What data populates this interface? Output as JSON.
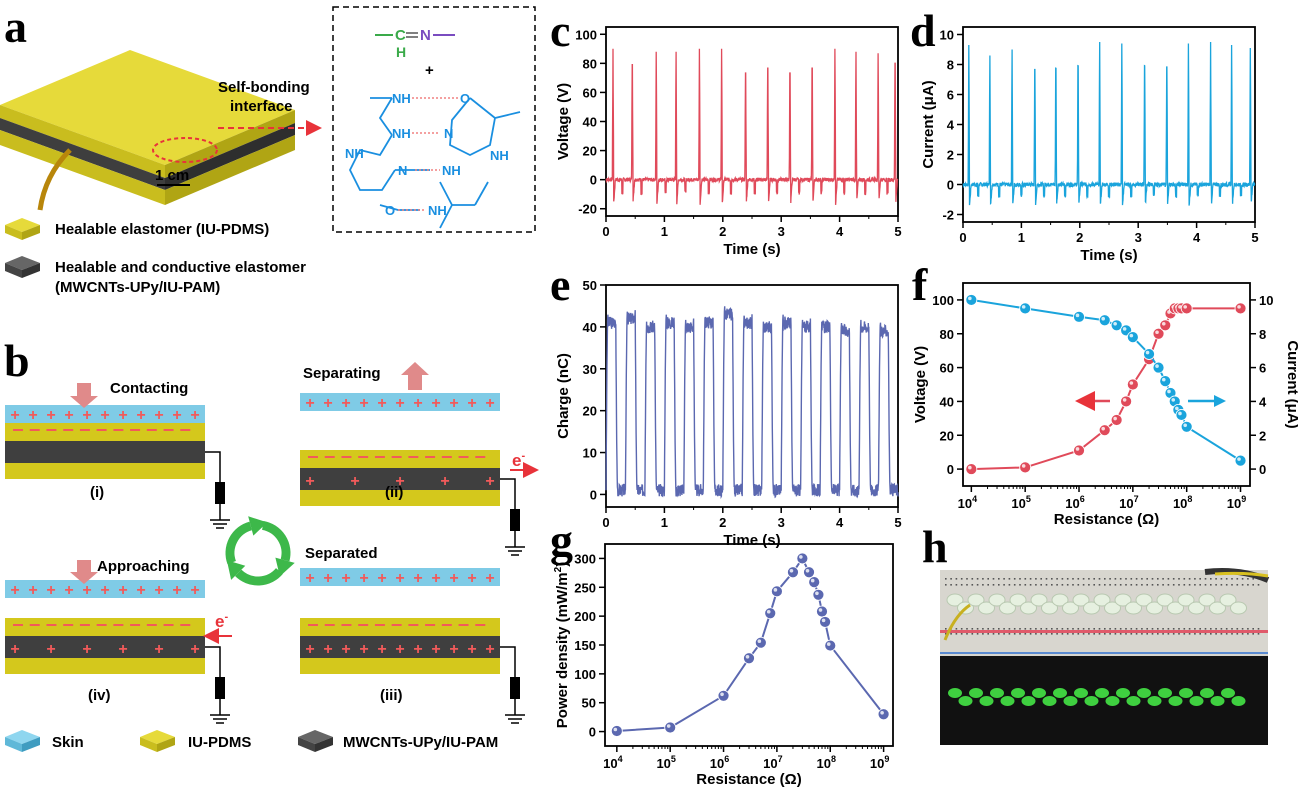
{
  "panel_labels": [
    "a",
    "b",
    "c",
    "d",
    "e",
    "f",
    "g",
    "h"
  ],
  "panel_a": {
    "callout": [
      "Self-bonding",
      "interface"
    ],
    "scale_bar": "1 cm",
    "chem": {
      "top_c": "C",
      "top_h": "H",
      "top_n": "N",
      "plus": "+",
      "nh": "NH",
      "n": "N",
      "o": "O"
    },
    "legend": [
      {
        "label": "Healable elastomer (IU-PDMS)",
        "color": "#d4c81c"
      },
      {
        "label": "Healable and conductive elastomer",
        "label2": "(MWCNTs-UPy/IU-PAM)",
        "color": "#4a4a4a"
      }
    ]
  },
  "panel_b": {
    "states": {
      "i": "Contacting",
      "ii": "Separating",
      "iii": "Separated",
      "iv": "Approaching"
    },
    "roman": {
      "i": "(i)",
      "ii": "(ii)",
      "iii": "(iii)",
      "iv": "(iv)"
    },
    "electron": "e",
    "electron_sup": "-",
    "plus": "+",
    "legend": [
      {
        "label": "Skin",
        "color": "#6cc6e6"
      },
      {
        "label": "IU-PDMS",
        "color": "#d4c81c"
      },
      {
        "label": "MWCNTs-UPy/IU-PAM",
        "color": "#4a4a4a"
      }
    ],
    "colors": {
      "skin": "#7fcbe6",
      "pdms": "#d4c81c",
      "conductive": "#3f3f3f",
      "charge": "#f25a5a",
      "arrow": "#e08a8a",
      "cycle": "#3db84a"
    }
  },
  "chart_data": [
    {
      "id": "c",
      "type": "line",
      "xlabel": "Time (s)",
      "ylabel": "Voltage (V)",
      "xlim": [
        0,
        5
      ],
      "ylim": [
        -25,
        105
      ],
      "xticks": [
        0,
        1,
        2,
        3,
        4,
        5
      ],
      "yticks": [
        -20,
        0,
        20,
        40,
        60,
        80,
        100
      ],
      "color": "#e04a5a",
      "peak_times": [
        0.12,
        0.45,
        0.86,
        1.2,
        1.6,
        1.98,
        2.39,
        2.77,
        3.15,
        3.53,
        3.92,
        4.28,
        4.66,
        4.95
      ],
      "peak_values": [
        90,
        95,
        88,
        88,
        90,
        90,
        88,
        92,
        88,
        92,
        90,
        88,
        87,
        96
      ],
      "trough_value": -18,
      "baseline": 0
    },
    {
      "id": "d",
      "type": "line",
      "xlabel": "Time (s)",
      "ylabel": "Current (μA)",
      "xlim": [
        0,
        5
      ],
      "ylim": [
        -2.5,
        10.5
      ],
      "xticks": [
        0,
        1,
        2,
        3,
        4,
        5
      ],
      "yticks": [
        -2,
        0,
        2,
        4,
        6,
        8,
        10
      ],
      "color": "#1aa4dc",
      "peak_times": [
        0.1,
        0.46,
        0.84,
        1.23,
        1.59,
        1.97,
        2.34,
        2.72,
        3.11,
        3.49,
        3.86,
        4.24,
        4.6,
        4.92
      ],
      "peak_values": [
        9.3,
        8.6,
        9.0,
        9.2,
        9.3,
        9.5,
        9.5,
        9.4,
        9.5,
        9.4,
        9.4,
        9.5,
        9.3,
        9.1
      ],
      "trough_value": -1.5,
      "baseline": 0
    },
    {
      "id": "e",
      "type": "line",
      "xlabel": "Time (s)",
      "ylabel": "Charge (nC)",
      "xlim": [
        0,
        5
      ],
      "ylim": [
        -3,
        50
      ],
      "xticks": [
        0,
        1,
        2,
        3,
        4,
        5
      ],
      "yticks": [
        0,
        10,
        20,
        30,
        40,
        50
      ],
      "color": "#5b68b0",
      "cycle_high_values": [
        43,
        44,
        42,
        43,
        42,
        43,
        45,
        43,
        42,
        43,
        42,
        42,
        41,
        42,
        41
      ],
      "low_value": 1
    },
    {
      "id": "f",
      "type": "line",
      "xlabel": "Resistance (Ω)",
      "ylabel": "Voltage (V)",
      "ylabel_right": "Current (μA)",
      "xscale": "log",
      "xlim": [
        7000,
        1500000000
      ],
      "ylim": [
        -10,
        110
      ],
      "ylim_right": [
        -1,
        11
      ],
      "xticks": [
        10000,
        100000,
        1000000,
        10000000,
        100000000,
        1000000000
      ],
      "xtick_labels": [
        "10",
        "10",
        "10",
        "10",
        "10",
        "10"
      ],
      "xtick_exps": [
        "4",
        "5",
        "6",
        "7",
        "8",
        "9"
      ],
      "yticks": [
        0,
        20,
        40,
        60,
        80,
        100
      ],
      "yticks_right": [
        0,
        2,
        4,
        6,
        8,
        10
      ],
      "x": [
        10000,
        100000,
        1000000,
        3000000,
        5000000,
        7500000,
        10000000,
        20000000,
        30000000,
        40000000,
        50000000,
        60000000,
        70000000,
        80000000,
        100000000,
        1000000000
      ],
      "series": [
        {
          "axis": "left",
          "color": "#e04a5a",
          "values": [
            0,
            1,
            11,
            23,
            29,
            40,
            50,
            65,
            80,
            85,
            92,
            95,
            95,
            95,
            95,
            95
          ]
        },
        {
          "axis": "right",
          "color": "#1aa4dc",
          "values": [
            10,
            9.5,
            9,
            8.8,
            8.5,
            8.2,
            7.8,
            6.8,
            6.0,
            5.2,
            4.5,
            4.0,
            3.5,
            3.2,
            2.5,
            0.5
          ]
        }
      ]
    },
    {
      "id": "g",
      "type": "line",
      "xlabel": "Resistance (Ω)",
      "ylabel": "Power density (mW/m",
      "ylabel_sup": "2",
      "ylabel_end": ")",
      "xscale": "log",
      "xlim": [
        6000,
        1500000000
      ],
      "ylim": [
        -25,
        325
      ],
      "xticks": [
        10000,
        100000,
        1000000,
        10000000,
        100000000,
        1000000000
      ],
      "xtick_labels": [
        "10",
        "10",
        "10",
        "10",
        "10",
        "10"
      ],
      "xtick_exps": [
        "4",
        "5",
        "6",
        "7",
        "8",
        "9"
      ],
      "yticks": [
        0,
        50,
        100,
        150,
        200,
        250,
        300
      ],
      "color": "#5b68b0",
      "x": [
        10000,
        100000,
        1000000,
        3000000,
        5000000,
        7500000,
        10000000,
        20000000,
        30000000,
        40000000,
        50000000,
        60000000,
        70000000,
        80000000,
        100000000,
        1000000000
      ],
      "values": [
        1,
        7,
        62,
        127,
        154,
        205,
        243,
        276,
        300,
        276,
        259,
        237,
        208,
        190,
        149,
        30
      ]
    }
  ]
}
